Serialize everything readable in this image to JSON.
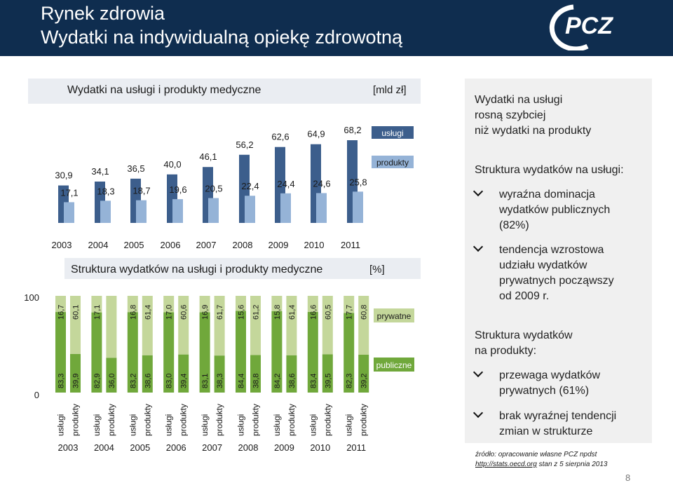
{
  "header": {
    "title": "Rynek zdrowia",
    "subtitle": "Wydatki na indywidualną opiekę zdrowotną",
    "logo_text": "PCZ"
  },
  "colors": {
    "header_bg": "#0f2d4f",
    "uslugi": "#3c5e8c",
    "produkty": "#95b3d7",
    "publiczne": "#70a83b",
    "prywatne": "#c4d79b"
  },
  "chart_data": [
    {
      "type": "bar",
      "title": "Wydatki na usługi i produkty medyczne",
      "unit": "[mld zł]",
      "categories": [
        "2003",
        "2004",
        "2005",
        "2006",
        "2007",
        "2008",
        "2009",
        "2010",
        "2011"
      ],
      "series": [
        {
          "name": "usługi",
          "values": [
            30.9,
            34.1,
            36.5,
            40.0,
            46.1,
            56.2,
            62.6,
            64.9,
            68.2
          ],
          "labels": [
            "30,9",
            "34,1",
            "36,5",
            "40,0",
            "46,1",
            "56,2",
            "62,6",
            "64,9",
            "68,2"
          ]
        },
        {
          "name": "produkty",
          "values": [
            17.1,
            18.3,
            18.7,
            19.6,
            20.5,
            22.4,
            24.4,
            24.6,
            25.8
          ],
          "labels": [
            "17,1",
            "18,3",
            "18,7",
            "19,6",
            "20,5",
            "22,4",
            "24,4",
            "24,6",
            "25,8"
          ]
        }
      ],
      "legend_placement": "right"
    },
    {
      "type": "bar",
      "stacked": true,
      "title": "Struktura wydatków na usługi i produkty medyczne",
      "unit": "[%]",
      "ylim": [
        0,
        100
      ],
      "yticks": [
        "0",
        "100"
      ],
      "categories": [
        "2003",
        "2004",
        "2005",
        "2006",
        "2007",
        "2008",
        "2009",
        "2010",
        "2011"
      ],
      "bar_labels": [
        "usługi",
        "produkty"
      ],
      "bars": [
        {
          "year": "2003",
          "kind": "usługi",
          "publiczne": 83.3,
          "prywatne": 16.7,
          "pub_label": "83,3",
          "pryw_label": "16,7"
        },
        {
          "year": "2003",
          "kind": "produkty",
          "publiczne": 39.9,
          "prywatne": 60.1,
          "pub_label": "39,9",
          "pryw_label": "60,1"
        },
        {
          "year": "2004",
          "kind": "usługi",
          "publiczne": 82.9,
          "prywatne": 17.1,
          "pub_label": "82,9",
          "pryw_label": "17,1"
        },
        {
          "year": "2004",
          "kind": "produkty",
          "publiczne": 36.0,
          "prywatne": 64.0,
          "pub_label": "36,0",
          "pryw_label": ""
        },
        {
          "year": "2005",
          "kind": "usługi",
          "publiczne": 83.2,
          "prywatne": 16.8,
          "pub_label": "83,2",
          "pryw_label": "16,8"
        },
        {
          "year": "2005",
          "kind": "produkty",
          "publiczne": 38.6,
          "prywatne": 61.4,
          "pub_label": "38,6",
          "pryw_label": "61,4"
        },
        {
          "year": "2006",
          "kind": "usługi",
          "publiczne": 83.0,
          "prywatne": 17.0,
          "pub_label": "83,0",
          "pryw_label": "17,0"
        },
        {
          "year": "2006",
          "kind": "produkty",
          "publiczne": 39.4,
          "prywatne": 60.6,
          "pub_label": "39,4",
          "pryw_label": "60,6"
        },
        {
          "year": "2007",
          "kind": "usługi",
          "publiczne": 83.1,
          "prywatne": 16.9,
          "pub_label": "83,1",
          "pryw_label": "16,9"
        },
        {
          "year": "2007",
          "kind": "produkty",
          "publiczne": 38.3,
          "prywatne": 61.7,
          "pub_label": "38,3",
          "pryw_label": "61,7"
        },
        {
          "year": "2008",
          "kind": "usługi",
          "publiczne": 84.4,
          "prywatne": 15.6,
          "pub_label": "84,4",
          "pryw_label": "15,6"
        },
        {
          "year": "2008",
          "kind": "produkty",
          "publiczne": 38.8,
          "prywatne": 61.2,
          "pub_label": "38,8",
          "pryw_label": "61,2"
        },
        {
          "year": "2009",
          "kind": "usługi",
          "publiczne": 84.2,
          "prywatne": 15.8,
          "pub_label": "84,2",
          "pryw_label": "15,8"
        },
        {
          "year": "2009",
          "kind": "produkty",
          "publiczne": 38.6,
          "prywatne": 61.4,
          "pub_label": "38,6",
          "pryw_label": "61,4"
        },
        {
          "year": "2010",
          "kind": "usługi",
          "publiczne": 83.4,
          "prywatne": 16.6,
          "pub_label": "83,4",
          "pryw_label": "16,6"
        },
        {
          "year": "2010",
          "kind": "produkty",
          "publiczne": 39.5,
          "prywatne": 60.5,
          "pub_label": "39,5",
          "pryw_label": "60,5"
        },
        {
          "year": "2011",
          "kind": "usługi",
          "publiczne": 82.3,
          "prywatne": 17.7,
          "pub_label": "82,3",
          "pryw_label": "17,7"
        },
        {
          "year": "2011",
          "kind": "produkty",
          "publiczne": 39.2,
          "prywatne": 60.8,
          "pub_label": "39,2",
          "pryw_label": "60,8"
        }
      ],
      "legend": [
        "prywatne",
        "publiczne"
      ],
      "legend_placement": "right"
    }
  ],
  "sidebar": {
    "lead_line1": "Wydatki na usługi",
    "lead_line2": "rosną szybciej",
    "lead_line3": "niż wydatki na produkty",
    "uslugi_heading": "Struktura wydatków na usługi:",
    "b1_l1": "wyraźna dominacja",
    "b1_l2": "wydatków publicznych",
    "b1_l3": "(82%)",
    "b2_l1": "tendencja wzrostowa",
    "b2_l2": "udziału wydatków",
    "b2_l3": "prywatnych począwszy",
    "b2_l4": "od 2009 r.",
    "produkty_heading_l1": "Struktura wydatków",
    "produkty_heading_l2": "na produkty:",
    "b3_l1": "przewaga wydatków",
    "b3_l2": "prywatnych (61%)",
    "b4_l1": "brak wyraźnej tendencji",
    "b4_l2": "zmian w strukturze"
  },
  "source": {
    "line1": "źródło: opracowanie własne PCZ npdst",
    "link": "http://stats.oecd.org",
    "line2_rest": " stan z 5 sierpnia 2013"
  },
  "page_number": "8"
}
